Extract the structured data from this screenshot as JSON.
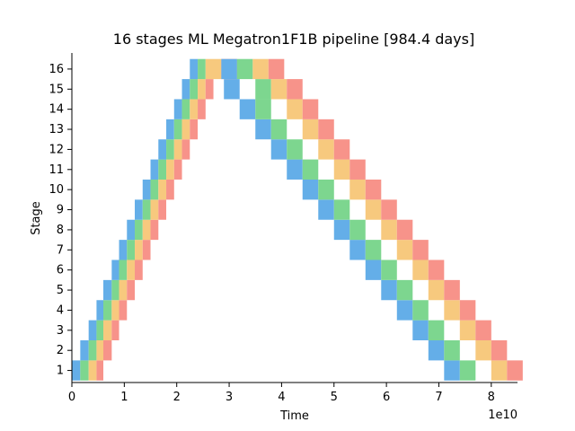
{
  "chart_data": {
    "type": "bar",
    "subtype": "pipeline-schedule",
    "title": "16 stages ML Megatron1F1B pipeline [984.4 days]",
    "xlabel": "Time",
    "ylabel": "Stage",
    "x_offset_label": "1e10",
    "xlim": [
      0,
      8.5
    ],
    "ylim": [
      0.4,
      16.8
    ],
    "x_ticks": [
      0,
      1,
      2,
      3,
      4,
      5,
      6,
      7,
      8
    ],
    "x_tick_labels": [
      "0",
      "1",
      "2",
      "3",
      "4",
      "5",
      "6",
      "7",
      "8"
    ],
    "y_ticks": [
      1,
      2,
      3,
      4,
      5,
      6,
      7,
      8,
      9,
      10,
      11,
      12,
      13,
      14,
      15,
      16
    ],
    "y_tick_labels": [
      "1",
      "2",
      "3",
      "4",
      "5",
      "6",
      "7",
      "8",
      "9",
      "10",
      "11",
      "12",
      "13",
      "14",
      "15",
      "16"
    ],
    "grid": false,
    "colors": [
      "#64aee8",
      "#7dd68f",
      "#f7c97e",
      "#f7938a"
    ],
    "stages": [
      {
        "stage": 1,
        "forward": [
          [
            0.0,
            0.16
          ],
          [
            0.16,
            0.32
          ],
          [
            0.32,
            0.47
          ],
          [
            0.47,
            0.6
          ]
        ],
        "backward": [
          [
            7.1,
            7.4
          ],
          [
            7.4,
            7.7
          ],
          [
            8.0,
            8.3
          ],
          [
            8.3,
            8.6
          ]
        ]
      },
      {
        "stage": 2,
        "forward": [
          [
            0.16,
            0.32
          ],
          [
            0.32,
            0.47
          ],
          [
            0.47,
            0.6
          ],
          [
            0.6,
            0.76
          ]
        ],
        "backward": [
          [
            6.8,
            7.1
          ],
          [
            7.1,
            7.4
          ],
          [
            7.7,
            8.0
          ],
          [
            8.0,
            8.3
          ]
        ]
      },
      {
        "stage": 3,
        "forward": [
          [
            0.32,
            0.47
          ],
          [
            0.47,
            0.6
          ],
          [
            0.6,
            0.76
          ],
          [
            0.76,
            0.9
          ]
        ],
        "backward": [
          [
            6.5,
            6.8
          ],
          [
            6.8,
            7.1
          ],
          [
            7.4,
            7.7
          ],
          [
            7.7,
            8.0
          ]
        ]
      },
      {
        "stage": 4,
        "forward": [
          [
            0.47,
            0.6
          ],
          [
            0.6,
            0.76
          ],
          [
            0.76,
            0.9
          ],
          [
            0.9,
            1.05
          ]
        ],
        "backward": [
          [
            6.2,
            6.5
          ],
          [
            6.5,
            6.8
          ],
          [
            7.1,
            7.4
          ],
          [
            7.4,
            7.7
          ]
        ]
      },
      {
        "stage": 5,
        "forward": [
          [
            0.6,
            0.76
          ],
          [
            0.76,
            0.9
          ],
          [
            0.9,
            1.05
          ],
          [
            1.05,
            1.2
          ]
        ],
        "backward": [
          [
            5.9,
            6.2
          ],
          [
            6.2,
            6.5
          ],
          [
            6.8,
            7.1
          ],
          [
            7.1,
            7.4
          ]
        ]
      },
      {
        "stage": 6,
        "forward": [
          [
            0.76,
            0.9
          ],
          [
            0.9,
            1.05
          ],
          [
            1.05,
            1.2
          ],
          [
            1.2,
            1.35
          ]
        ],
        "backward": [
          [
            5.6,
            5.9
          ],
          [
            5.9,
            6.2
          ],
          [
            6.5,
            6.8
          ],
          [
            6.8,
            7.1
          ]
        ]
      },
      {
        "stage": 7,
        "forward": [
          [
            0.9,
            1.05
          ],
          [
            1.05,
            1.2
          ],
          [
            1.2,
            1.35
          ],
          [
            1.35,
            1.5
          ]
        ],
        "backward": [
          [
            5.3,
            5.6
          ],
          [
            5.6,
            5.9
          ],
          [
            6.2,
            6.5
          ],
          [
            6.5,
            6.8
          ]
        ]
      },
      {
        "stage": 8,
        "forward": [
          [
            1.05,
            1.2
          ],
          [
            1.2,
            1.35
          ],
          [
            1.35,
            1.5
          ],
          [
            1.5,
            1.65
          ]
        ],
        "backward": [
          [
            5.0,
            5.3
          ],
          [
            5.3,
            5.6
          ],
          [
            5.9,
            6.2
          ],
          [
            6.2,
            6.5
          ]
        ]
      },
      {
        "stage": 9,
        "forward": [
          [
            1.2,
            1.35
          ],
          [
            1.35,
            1.5
          ],
          [
            1.5,
            1.65
          ],
          [
            1.65,
            1.8
          ]
        ],
        "backward": [
          [
            4.7,
            5.0
          ],
          [
            5.0,
            5.3
          ],
          [
            5.6,
            5.9
          ],
          [
            5.9,
            6.2
          ]
        ]
      },
      {
        "stage": 10,
        "forward": [
          [
            1.35,
            1.5
          ],
          [
            1.5,
            1.65
          ],
          [
            1.65,
            1.8
          ],
          [
            1.8,
            1.95
          ]
        ],
        "backward": [
          [
            4.4,
            4.7
          ],
          [
            4.7,
            5.0
          ],
          [
            5.3,
            5.6
          ],
          [
            5.6,
            5.9
          ]
        ]
      },
      {
        "stage": 11,
        "forward": [
          [
            1.5,
            1.65
          ],
          [
            1.65,
            1.8
          ],
          [
            1.8,
            1.95
          ],
          [
            1.95,
            2.1
          ]
        ],
        "backward": [
          [
            4.1,
            4.4
          ],
          [
            4.4,
            4.7
          ],
          [
            5.0,
            5.3
          ],
          [
            5.3,
            5.6
          ]
        ]
      },
      {
        "stage": 12,
        "forward": [
          [
            1.65,
            1.8
          ],
          [
            1.8,
            1.95
          ],
          [
            1.95,
            2.1
          ],
          [
            2.1,
            2.25
          ]
        ],
        "backward": [
          [
            3.8,
            4.1
          ],
          [
            4.1,
            4.4
          ],
          [
            4.7,
            5.0
          ],
          [
            5.0,
            5.3
          ]
        ]
      },
      {
        "stage": 13,
        "forward": [
          [
            1.8,
            1.95
          ],
          [
            1.95,
            2.1
          ],
          [
            2.1,
            2.25
          ],
          [
            2.25,
            2.4
          ]
        ],
        "backward": [
          [
            3.5,
            3.8
          ],
          [
            3.8,
            4.1
          ],
          [
            4.4,
            4.7
          ],
          [
            4.7,
            5.0
          ]
        ]
      },
      {
        "stage": 14,
        "forward": [
          [
            1.95,
            2.1
          ],
          [
            2.1,
            2.25
          ],
          [
            2.25,
            2.4
          ],
          [
            2.4,
            2.55
          ]
        ],
        "backward": [
          [
            3.2,
            3.5
          ],
          [
            3.5,
            3.8
          ],
          [
            4.1,
            4.4
          ],
          [
            4.4,
            4.7
          ]
        ]
      },
      {
        "stage": 15,
        "forward": [
          [
            2.1,
            2.25
          ],
          [
            2.25,
            2.4
          ],
          [
            2.4,
            2.55
          ],
          [
            2.55,
            2.7
          ]
        ],
        "backward": [
          [
            2.9,
            3.2
          ],
          [
            3.5,
            3.8
          ],
          [
            3.8,
            4.1
          ],
          [
            4.1,
            4.4
          ]
        ]
      },
      {
        "stage": 16,
        "forward": [
          [
            2.25,
            2.4
          ],
          [
            2.4,
            2.55
          ],
          [
            2.55,
            2.85
          ],
          [
            2.85,
            3.15
          ]
        ],
        "backward": [
          [
            2.85,
            3.15
          ],
          [
            3.15,
            3.45
          ],
          [
            3.45,
            3.75
          ],
          [
            3.75,
            4.05
          ]
        ]
      }
    ]
  }
}
